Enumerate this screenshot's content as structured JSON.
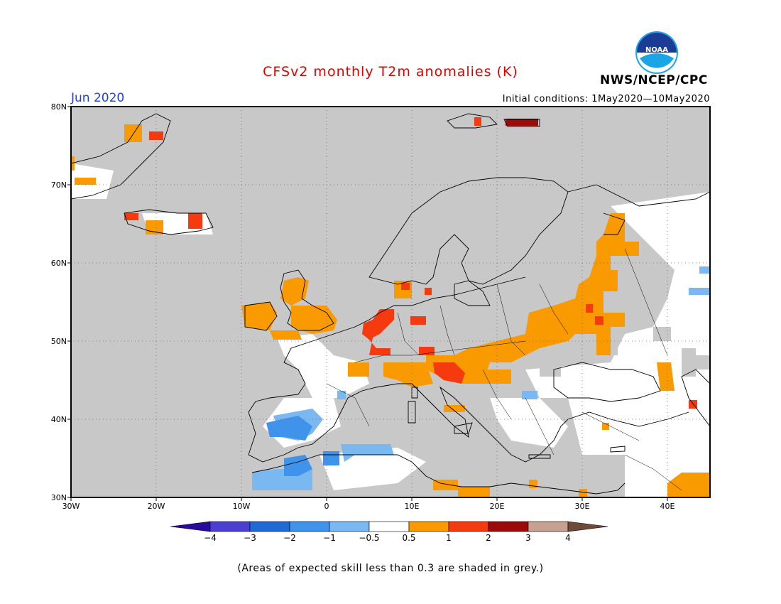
{
  "header": {
    "title": "CFSv2 monthly T2m anomalies (K)",
    "month": "Jun 2020",
    "initial_conditions": "Initial conditions: 1May2020—10May2020",
    "agency": "NWS/NCEP/CPC",
    "logo_text": "NOAA"
  },
  "map": {
    "lon_range": [
      -30,
      45
    ],
    "lat_range": [
      30,
      80
    ],
    "lon_ticks": [
      "30W",
      "20W",
      "10W",
      "0",
      "10E",
      "20E",
      "30E",
      "40E"
    ],
    "lat_ticks": [
      "30N",
      "40N",
      "50N",
      "60N",
      "70N",
      "80N"
    ],
    "grid": true,
    "ocean_color": "#c8c8c8",
    "anomaly_regions": [
      {
        "name": "western-russia-ukraine",
        "category": "0.5 to 1"
      },
      {
        "name": "iberia",
        "category": "-1 to -2"
      },
      {
        "name": "north-africa",
        "category": "-0.5 to -1"
      },
      {
        "name": "british-isles",
        "category": "0.5 to 1"
      },
      {
        "name": "benelux-germany",
        "category": "1 to 2"
      },
      {
        "name": "hungary-balkans",
        "category": "0.5 to 1"
      },
      {
        "name": "svalbard-east",
        "category": "2 to 3"
      }
    ]
  },
  "colorbar": {
    "levels": [
      "-4",
      "-3",
      "-2",
      "-1",
      "-0.5",
      "0.5",
      "1",
      "2",
      "3",
      "4"
    ],
    "colors": [
      "#2a0a9c",
      "#4a3fd0",
      "#1f6ad4",
      "#3f93ea",
      "#7ab8f2",
      "#ffffff",
      "#f89a00",
      "#f43a0e",
      "#9c0a0a",
      "#c8a090",
      "#6e4a3a"
    ]
  },
  "footnote": "(Areas of expected skill less than 0.3 are shaded in grey.)"
}
